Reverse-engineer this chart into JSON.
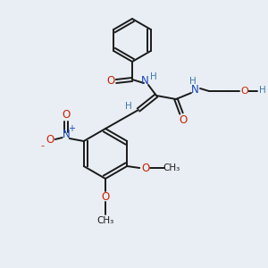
{
  "bg_color": "#e8eef4",
  "bond_color": "#1a1a1a",
  "nitrogen_color": "#1a44bb",
  "oxygen_color": "#cc2200",
  "h_color": "#4477aa",
  "figsize": [
    3.0,
    3.0
  ],
  "dpi": 100,
  "xlim": [
    0,
    300
  ],
  "ylim": [
    0,
    300
  ]
}
